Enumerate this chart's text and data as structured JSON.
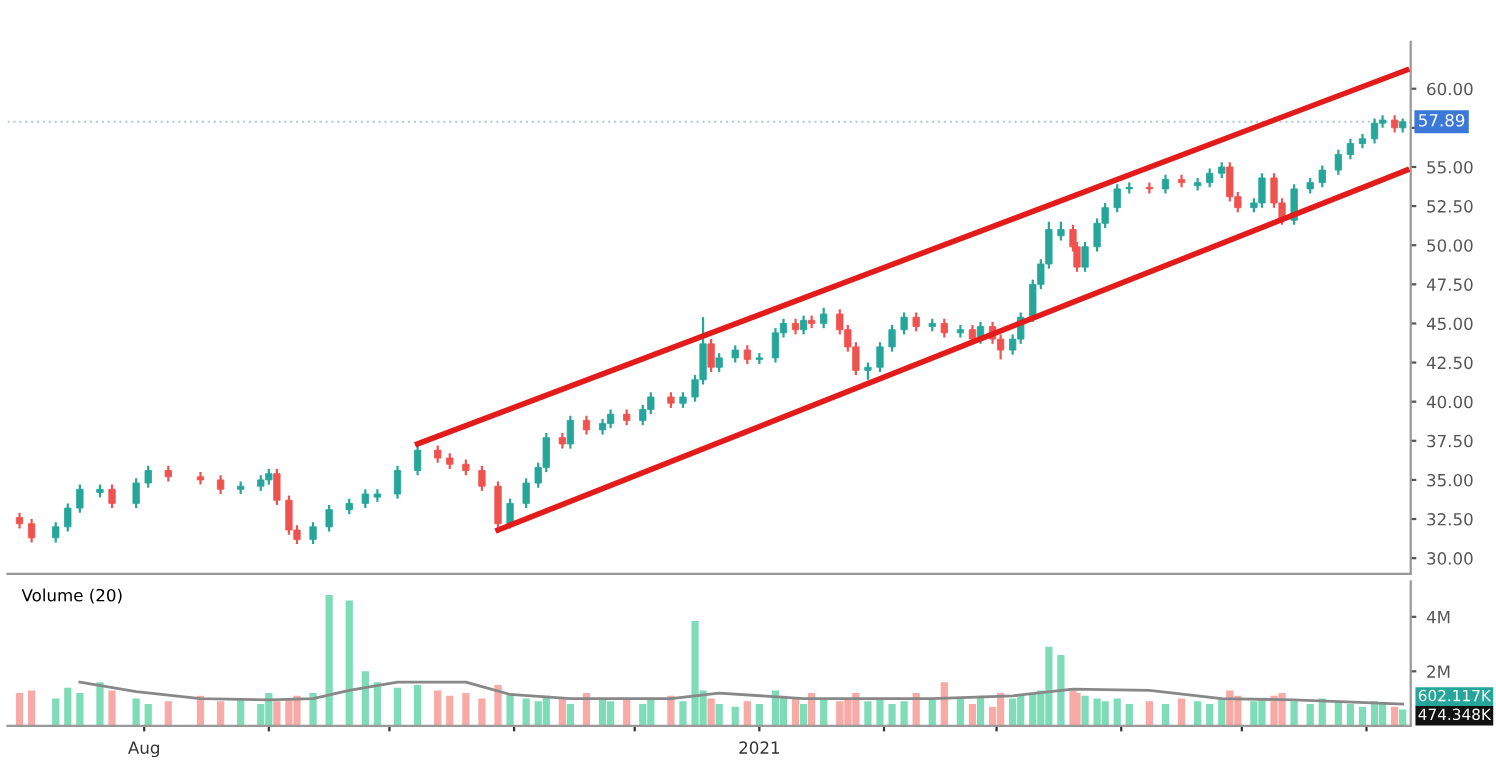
{
  "chart_data": [
    {
      "type": "candlestick",
      "tick_labels": "y",
      "legend": false,
      "grid": false,
      "x": [
        "2020-07-01",
        "2020-07-04",
        "2020-07-10",
        "2020-07-13",
        "2020-07-16",
        "2020-07-21",
        "2020-07-24",
        "2020-07-30",
        "2020-08-02",
        "2020-08-07",
        "2020-08-15",
        "2020-08-20",
        "2020-08-25",
        "2020-08-30",
        "2020-09-01",
        "2020-09-03",
        "2020-09-06",
        "2020-09-08",
        "2020-09-12",
        "2020-09-16",
        "2020-09-21",
        "2020-09-25",
        "2020-09-28",
        "2020-10-03",
        "2020-10-08",
        "2020-10-13",
        "2020-10-16",
        "2020-10-20",
        "2020-10-24",
        "2020-10-28",
        "2020-10-31",
        "2020-11-04",
        "2020-11-07",
        "2020-11-09",
        "2020-11-13",
        "2020-11-15",
        "2020-11-19",
        "2020-11-23",
        "2020-11-25",
        "2020-11-29",
        "2020-12-03",
        "2020-12-05",
        "2020-12-10",
        "2020-12-13",
        "2020-12-16",
        "2020-12-18",
        "2020-12-20",
        "2020-12-22",
        "2020-12-26",
        "2020-12-29",
        "2021-01-01",
        "2021-01-05",
        "2021-01-07",
        "2021-01-10",
        "2021-01-12",
        "2021-01-14",
        "2021-01-17",
        "2021-01-21",
        "2021-01-23",
        "2021-01-25",
        "2021-01-28",
        "2021-01-31",
        "2021-02-03",
        "2021-02-06",
        "2021-02-09",
        "2021-02-13",
        "2021-02-16",
        "2021-02-20",
        "2021-02-23",
        "2021-02-25",
        "2021-02-28",
        "2021-03-02",
        "2021-03-05",
        "2021-03-07",
        "2021-03-10",
        "2021-03-12",
        "2021-03-14",
        "2021-03-17",
        "2021-03-20",
        "2021-03-21",
        "2021-03-23",
        "2021-03-26",
        "2021-03-28",
        "2021-03-31",
        "2021-04-03",
        "2021-04-08",
        "2021-04-12",
        "2021-04-16",
        "2021-04-20",
        "2021-04-23",
        "2021-04-26",
        "2021-04-28",
        "2021-04-30",
        "2021-05-04",
        "2021-05-06",
        "2021-05-09",
        "2021-05-11",
        "2021-05-14",
        "2021-05-18",
        "2021-05-21",
        "2021-05-25",
        "2021-05-28",
        "2021-05-31",
        "2021-06-03",
        "2021-06-05",
        "2021-06-08",
        "2021-06-10"
      ],
      "ohlc": [
        [
          32.6,
          32.9,
          31.9,
          32.2
        ],
        [
          32.2,
          32.5,
          31.0,
          31.3
        ],
        [
          31.3,
          32.3,
          31.0,
          32.0
        ],
        [
          32.0,
          33.5,
          31.7,
          33.2
        ],
        [
          33.2,
          34.7,
          32.9,
          34.4
        ],
        [
          34.2,
          34.7,
          33.9,
          34.4
        ],
        [
          34.4,
          34.7,
          33.2,
          33.5
        ],
        [
          33.5,
          35.1,
          33.2,
          34.8
        ],
        [
          34.8,
          35.9,
          34.5,
          35.6
        ],
        [
          35.6,
          35.9,
          34.9,
          35.2
        ],
        [
          35.2,
          35.5,
          34.7,
          35.0
        ],
        [
          35.0,
          35.3,
          34.1,
          34.4
        ],
        [
          34.4,
          34.9,
          34.1,
          34.6
        ],
        [
          34.6,
          35.3,
          34.3,
          35.0
        ],
        [
          35.0,
          35.7,
          34.7,
          35.4
        ],
        [
          35.4,
          35.7,
          33.4,
          33.7
        ],
        [
          33.7,
          34.0,
          31.5,
          31.8
        ],
        [
          31.8,
          32.1,
          30.9,
          31.2
        ],
        [
          31.2,
          32.3,
          30.9,
          32.0
        ],
        [
          32.0,
          33.4,
          31.7,
          33.1
        ],
        [
          33.1,
          33.8,
          32.8,
          33.5
        ],
        [
          33.5,
          34.4,
          33.2,
          34.1
        ],
        [
          33.9,
          34.4,
          33.6,
          34.1
        ],
        [
          34.1,
          35.9,
          33.8,
          35.6
        ],
        [
          35.6,
          37.2,
          35.3,
          36.9
        ],
        [
          36.9,
          37.2,
          36.1,
          36.4
        ],
        [
          36.4,
          36.7,
          35.7,
          36.0
        ],
        [
          36.0,
          36.3,
          35.3,
          35.6
        ],
        [
          35.6,
          35.9,
          34.3,
          34.6
        ],
        [
          34.6,
          34.9,
          31.6,
          32.2
        ],
        [
          32.2,
          33.8,
          31.9,
          33.5
        ],
        [
          33.5,
          35.1,
          33.2,
          34.8
        ],
        [
          34.8,
          36.1,
          34.5,
          35.8
        ],
        [
          35.8,
          38.0,
          35.5,
          37.7
        ],
        [
          37.7,
          38.0,
          37.0,
          37.3
        ],
        [
          37.3,
          39.1,
          37.0,
          38.8
        ],
        [
          38.8,
          39.1,
          37.9,
          38.2
        ],
        [
          38.2,
          38.9,
          37.9,
          38.6
        ],
        [
          38.6,
          39.5,
          38.3,
          39.2
        ],
        [
          39.2,
          39.5,
          38.5,
          38.8
        ],
        [
          38.8,
          39.8,
          38.5,
          39.5
        ],
        [
          39.5,
          40.6,
          39.2,
          40.3
        ],
        [
          40.3,
          40.6,
          39.6,
          39.9
        ],
        [
          39.9,
          40.6,
          39.6,
          40.3
        ],
        [
          40.3,
          41.7,
          40.0,
          41.4
        ],
        [
          41.4,
          45.4,
          41.1,
          43.7
        ],
        [
          43.7,
          44.0,
          41.9,
          42.2
        ],
        [
          42.2,
          43.1,
          41.9,
          42.8
        ],
        [
          42.8,
          43.6,
          42.5,
          43.3
        ],
        [
          43.3,
          43.6,
          42.4,
          42.7
        ],
        [
          42.7,
          43.1,
          42.4,
          42.8
        ],
        [
          42.8,
          44.7,
          42.5,
          44.4
        ],
        [
          44.4,
          45.3,
          44.1,
          45.0
        ],
        [
          45.0,
          45.3,
          44.3,
          44.6
        ],
        [
          44.6,
          45.5,
          44.3,
          45.2
        ],
        [
          45.2,
          45.5,
          44.7,
          45.0
        ],
        [
          45.0,
          46.0,
          44.7,
          45.6
        ],
        [
          45.6,
          45.9,
          44.3,
          44.6
        ],
        [
          44.6,
          44.9,
          43.2,
          43.5
        ],
        [
          43.5,
          43.8,
          41.7,
          42.0
        ],
        [
          42.0,
          42.5,
          41.4,
          42.2
        ],
        [
          42.2,
          43.8,
          41.9,
          43.5
        ],
        [
          43.5,
          44.9,
          43.2,
          44.6
        ],
        [
          44.6,
          45.7,
          44.3,
          45.4
        ],
        [
          45.4,
          45.7,
          44.5,
          44.8
        ],
        [
          44.8,
          45.3,
          44.5,
          45.0
        ],
        [
          45.0,
          45.3,
          44.1,
          44.4
        ],
        [
          44.4,
          44.9,
          44.1,
          44.6
        ],
        [
          44.6,
          44.9,
          43.7,
          44.0
        ],
        [
          44.0,
          45.1,
          43.7,
          44.8
        ],
        [
          44.8,
          45.1,
          43.7,
          44.0
        ],
        [
          44.0,
          44.3,
          42.7,
          43.3
        ],
        [
          43.3,
          44.3,
          43.0,
          44.0
        ],
        [
          44.0,
          45.7,
          43.7,
          45.4
        ],
        [
          45.4,
          47.8,
          45.1,
          47.5
        ],
        [
          47.5,
          49.1,
          47.2,
          48.8
        ],
        [
          48.8,
          51.5,
          48.5,
          51.0
        ],
        [
          50.6,
          51.5,
          50.3,
          51.0
        ],
        [
          51.0,
          51.3,
          49.6,
          49.9
        ],
        [
          49.9,
          50.2,
          48.3,
          48.6
        ],
        [
          48.6,
          50.2,
          48.3,
          49.9
        ],
        [
          49.9,
          51.7,
          49.6,
          51.4
        ],
        [
          51.4,
          52.7,
          51.1,
          52.4
        ],
        [
          52.4,
          53.9,
          52.1,
          53.6
        ],
        [
          53.6,
          54.0,
          53.3,
          53.7
        ],
        [
          53.7,
          54.0,
          53.3,
          53.6
        ],
        [
          53.6,
          54.5,
          53.3,
          54.2
        ],
        [
          54.2,
          54.5,
          53.7,
          54.0
        ],
        [
          53.8,
          54.3,
          53.5,
          54.0
        ],
        [
          54.0,
          54.9,
          53.7,
          54.6
        ],
        [
          54.6,
          55.3,
          54.3,
          55.0
        ],
        [
          55.0,
          55.3,
          52.8,
          53.1
        ],
        [
          53.1,
          53.4,
          52.1,
          52.4
        ],
        [
          52.4,
          53.0,
          52.1,
          52.7
        ],
        [
          52.7,
          54.6,
          52.4,
          54.3
        ],
        [
          54.3,
          54.6,
          52.4,
          52.7
        ],
        [
          52.7,
          53.0,
          51.3,
          51.6
        ],
        [
          51.6,
          53.9,
          51.3,
          53.6
        ],
        [
          53.6,
          54.3,
          53.3,
          54.0
        ],
        [
          54.0,
          55.1,
          53.7,
          54.8
        ],
        [
          54.8,
          56.1,
          54.5,
          55.8
        ],
        [
          55.8,
          56.8,
          55.5,
          56.5
        ],
        [
          56.5,
          57.1,
          56.2,
          56.8
        ],
        [
          56.8,
          58.1,
          56.5,
          57.8
        ],
        [
          57.8,
          58.3,
          57.5,
          58.0
        ],
        [
          58.0,
          58.3,
          57.2,
          57.5
        ],
        [
          57.5,
          58.1,
          57.2,
          57.89
        ]
      ],
      "series": [
        {
          "type": "line",
          "color": "#e31b1b",
          "x": [
            "2020-10-08",
            "2021-06-11"
          ],
          "values": [
            37.3,
            61.2
          ]
        },
        {
          "type": "line",
          "color": "#e31b1b",
          "x": [
            "2020-10-28",
            "2021-06-11"
          ],
          "values": [
            31.8,
            54.8
          ]
        }
      ],
      "ref_lines": [
        {
          "axis": "y",
          "value": 57.89,
          "label": "57.89",
          "color": "#b8c8dc",
          "line_style": "dotted"
        }
      ],
      "xlim": [
        "2020-06-28",
        "2021-06-12"
      ],
      "ylim": [
        29,
        63
      ],
      "yticks": [
        {
          "value": 30,
          "label": "30.00"
        },
        {
          "value": 32.5,
          "label": "32.50"
        },
        {
          "value": 35,
          "label": "35.00"
        },
        {
          "value": 37.5,
          "label": "37.50"
        },
        {
          "value": 40,
          "label": "40.00"
        },
        {
          "value": 42.5,
          "label": "42.50"
        },
        {
          "value": 45,
          "label": "45.00"
        },
        {
          "value": 47.5,
          "label": "47.50"
        },
        {
          "value": 50,
          "label": "50.00"
        },
        {
          "value": 52.5,
          "label": "52.50"
        },
        {
          "value": 55,
          "label": "55.00"
        },
        {
          "value": 57.5,
          "label": null
        },
        {
          "value": 60,
          "label": "60.00"
        }
      ]
    },
    {
      "type": "bar",
      "title": "Volume (20)",
      "legend": false,
      "grid": false,
      "x": [
        "2020-07-01",
        "2020-07-04",
        "2020-07-10",
        "2020-07-13",
        "2020-07-16",
        "2020-07-21",
        "2020-07-24",
        "2020-07-30",
        "2020-08-02",
        "2020-08-07",
        "2020-08-15",
        "2020-08-20",
        "2020-08-25",
        "2020-08-30",
        "2020-09-01",
        "2020-09-03",
        "2020-09-06",
        "2020-09-08",
        "2020-09-12",
        "2020-09-16",
        "2020-09-21",
        "2020-09-25",
        "2020-09-28",
        "2020-10-03",
        "2020-10-08",
        "2020-10-13",
        "2020-10-16",
        "2020-10-20",
        "2020-10-24",
        "2020-10-28",
        "2020-10-31",
        "2020-11-04",
        "2020-11-07",
        "2020-11-09",
        "2020-11-13",
        "2020-11-15",
        "2020-11-19",
        "2020-11-23",
        "2020-11-25",
        "2020-11-29",
        "2020-12-03",
        "2020-12-05",
        "2020-12-10",
        "2020-12-13",
        "2020-12-16",
        "2020-12-18",
        "2020-12-20",
        "2020-12-22",
        "2020-12-26",
        "2020-12-29",
        "2021-01-01",
        "2021-01-05",
        "2021-01-07",
        "2021-01-10",
        "2021-01-12",
        "2021-01-14",
        "2021-01-17",
        "2021-01-21",
        "2021-01-23",
        "2021-01-25",
        "2021-01-28",
        "2021-01-31",
        "2021-02-03",
        "2021-02-06",
        "2021-02-09",
        "2021-02-13",
        "2021-02-16",
        "2021-02-20",
        "2021-02-23",
        "2021-02-25",
        "2021-02-28",
        "2021-03-02",
        "2021-03-05",
        "2021-03-07",
        "2021-03-10",
        "2021-03-12",
        "2021-03-14",
        "2021-03-17",
        "2021-03-20",
        "2021-03-21",
        "2021-03-23",
        "2021-03-26",
        "2021-03-28",
        "2021-03-31",
        "2021-04-03",
        "2021-04-08",
        "2021-04-12",
        "2021-04-16",
        "2021-04-20",
        "2021-04-23",
        "2021-04-26",
        "2021-04-28",
        "2021-04-30",
        "2021-05-04",
        "2021-05-06",
        "2021-05-09",
        "2021-05-11",
        "2021-05-14",
        "2021-05-18",
        "2021-05-21",
        "2021-05-25",
        "2021-05-28",
        "2021-05-31",
        "2021-06-03",
        "2021-06-05",
        "2021-06-08",
        "2021-06-10"
      ],
      "values": [
        1.2,
        1.3,
        1.0,
        1.4,
        1.2,
        1.6,
        1.3,
        1.0,
        0.8,
        0.9,
        1.1,
        0.9,
        1.0,
        0.8,
        1.2,
        0.9,
        1.0,
        1.1,
        1.2,
        4.8,
        4.6,
        2.0,
        1.6,
        1.4,
        1.5,
        1.3,
        1.1,
        1.2,
        1.0,
        1.5,
        1.2,
        1.0,
        0.9,
        1.1,
        1.0,
        0.8,
        1.2,
        1.0,
        0.9,
        1.0,
        0.8,
        1.0,
        1.1,
        0.9,
        3.85,
        1.3,
        1.0,
        0.8,
        0.7,
        0.9,
        0.8,
        1.3,
        1.1,
        1.0,
        0.8,
        1.2,
        1.0,
        0.9,
        1.0,
        1.2,
        0.9,
        1.0,
        0.8,
        0.9,
        1.2,
        1.0,
        1.6,
        1.0,
        0.8,
        1.1,
        0.7,
        1.2,
        1.0,
        1.1,
        1.2,
        1.3,
        2.9,
        2.6,
        1.3,
        1.2,
        1.1,
        1.0,
        0.9,
        1.0,
        0.8,
        0.9,
        0.8,
        1.0,
        0.9,
        0.8,
        1.0,
        1.3,
        1.1,
        0.9,
        1.0,
        1.1,
        1.2,
        0.9,
        0.8,
        1.0,
        0.9,
        0.8,
        0.7,
        0.9,
        0.8,
        0.7,
        0.6
      ],
      "colors": [
        "#f7aaa6",
        "#f7aaa6",
        "#7fdcb8",
        "#7fdcb8",
        "#7fdcb8",
        "#7fdcb8",
        "#f7aaa6",
        "#7fdcb8",
        "#7fdcb8",
        "#f7aaa6",
        "#f7aaa6",
        "#f7aaa6",
        "#7fdcb8",
        "#7fdcb8",
        "#7fdcb8",
        "#f7aaa6",
        "#f7aaa6",
        "#f7aaa6",
        "#7fdcb8",
        "#7fdcb8",
        "#7fdcb8",
        "#7fdcb8",
        "#7fdcb8",
        "#7fdcb8",
        "#7fdcb8",
        "#f7aaa6",
        "#f7aaa6",
        "#f7aaa6",
        "#f7aaa6",
        "#f7aaa6",
        "#7fdcb8",
        "#7fdcb8",
        "#7fdcb8",
        "#7fdcb8",
        "#f7aaa6",
        "#7fdcb8",
        "#f7aaa6",
        "#7fdcb8",
        "#7fdcb8",
        "#f7aaa6",
        "#7fdcb8",
        "#7fdcb8",
        "#f7aaa6",
        "#7fdcb8",
        "#7fdcb8",
        "#7fdcb8",
        "#f7aaa6",
        "#7fdcb8",
        "#7fdcb8",
        "#f7aaa6",
        "#7fdcb8",
        "#7fdcb8",
        "#7fdcb8",
        "#f7aaa6",
        "#7fdcb8",
        "#f7aaa6",
        "#7fdcb8",
        "#f7aaa6",
        "#f7aaa6",
        "#f7aaa6",
        "#7fdcb8",
        "#7fdcb8",
        "#7fdcb8",
        "#7fdcb8",
        "#f7aaa6",
        "#7fdcb8",
        "#f7aaa6",
        "#7fdcb8",
        "#f7aaa6",
        "#7fdcb8",
        "#f7aaa6",
        "#f7aaa6",
        "#7fdcb8",
        "#7fdcb8",
        "#7fdcb8",
        "#7fdcb8",
        "#7fdcb8",
        "#7fdcb8",
        "#f7aaa6",
        "#f7aaa6",
        "#7fdcb8",
        "#7fdcb8",
        "#7fdcb8",
        "#7fdcb8",
        "#7fdcb8",
        "#f7aaa6",
        "#7fdcb8",
        "#f7aaa6",
        "#7fdcb8",
        "#7fdcb8",
        "#7fdcb8",
        "#f7aaa6",
        "#f7aaa6",
        "#7fdcb8",
        "#7fdcb8",
        "#f7aaa6",
        "#f7aaa6",
        "#7fdcb8",
        "#7fdcb8",
        "#7fdcb8",
        "#7fdcb8",
        "#7fdcb8",
        "#7fdcb8",
        "#7fdcb8",
        "#7fdcb8",
        "#f7aaa6",
        "#7fdcb8"
      ],
      "series": [
        {
          "type": "line",
          "color": "#888888",
          "x": [
            "2020-07-16",
            "2020-07-30",
            "2020-08-15",
            "2020-09-01",
            "2020-09-12",
            "2020-09-21",
            "2020-10-03",
            "2020-10-20",
            "2020-10-31",
            "2020-11-15",
            "2020-12-10",
            "2020-12-22",
            "2021-01-12",
            "2021-02-13",
            "2021-03-05",
            "2021-03-20",
            "2021-04-08",
            "2021-04-26",
            "2021-05-14",
            "2021-06-10"
          ],
          "values": [
            1.6,
            1.25,
            1.0,
            0.95,
            1.0,
            1.3,
            1.6,
            1.6,
            1.15,
            1.0,
            1.0,
            1.2,
            1.0,
            1.0,
            1.1,
            1.35,
            1.3,
            1.0,
            0.95,
            0.8
          ]
        }
      ],
      "annotations": [
        "602.117K",
        "474.348K"
      ],
      "xlim": [
        "2020-06-28",
        "2021-06-12"
      ],
      "ylim": [
        0,
        5.3
      ],
      "xticks": [
        {
          "value": "2020-08-01",
          "label": "Aug"
        },
        {
          "value": "2020-09-01",
          "label": null
        },
        {
          "value": "2020-10-01",
          "label": null
        },
        {
          "value": "2020-11-01",
          "label": null
        },
        {
          "value": "2020-12-01",
          "label": null
        },
        {
          "value": "2021-01-01",
          "label": "2021"
        },
        {
          "value": "2021-02-01",
          "label": null
        },
        {
          "value": "2021-03-01",
          "label": null
        },
        {
          "value": "2021-04-01",
          "label": null
        },
        {
          "value": "2021-05-01",
          "label": null
        },
        {
          "value": "2021-06-01",
          "label": null
        }
      ],
      "yticks": [
        {
          "value": 2,
          "label": "2M"
        },
        {
          "value": 4,
          "label": "4M"
        }
      ]
    }
  ]
}
